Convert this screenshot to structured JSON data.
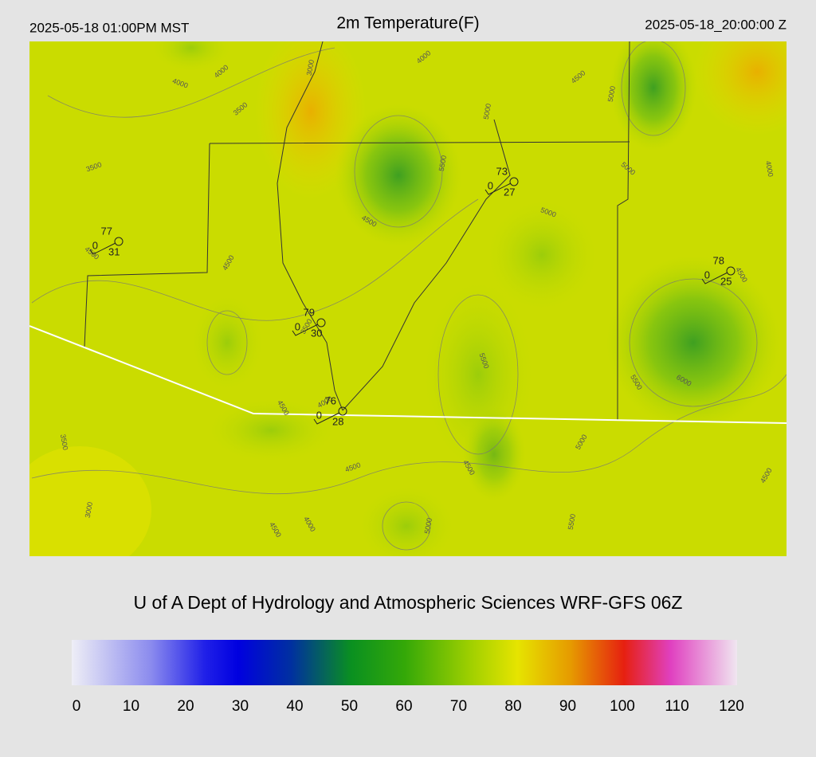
{
  "header": {
    "local_time": "2025-05-18 01:00PM MST",
    "title": "2m Temperature(F)",
    "utc_time": "2025-05-18_20:00:00 Z"
  },
  "map": {
    "stations": [
      {
        "temperature": 77,
        "wind": 0,
        "dewpoint": 31
      },
      {
        "temperature": 73,
        "wind": 0,
        "dewpoint": 27
      },
      {
        "temperature": 78,
        "wind": 0,
        "dewpoint": 25
      },
      {
        "temperature": 79,
        "wind": 0,
        "dewpoint": 30
      },
      {
        "temperature": 76,
        "wind": 0,
        "dewpoint": 28
      }
    ],
    "contour_labels": [
      "4000",
      "4000",
      "3000",
      "4000",
      "3500",
      "3500",
      "4500",
      "5000",
      "5000",
      "5500",
      "5000",
      "4000",
      "4500",
      "5000",
      "4500",
      "4500",
      "4500",
      "3500",
      "5500",
      "5500",
      "6000",
      "4500",
      "4000",
      "3500",
      "5000",
      "4500",
      "4500",
      "4500",
      "3000",
      "4000",
      "5000",
      "4500",
      "5500"
    ]
  },
  "footer": {
    "credit": "U of A Dept of Hydrology and Atmospheric Sciences WRF-GFS 06Z"
  },
  "colorbar": {
    "ticks": [
      0,
      10,
      20,
      30,
      40,
      50,
      60,
      70,
      80,
      90,
      100,
      110,
      120
    ]
  }
}
